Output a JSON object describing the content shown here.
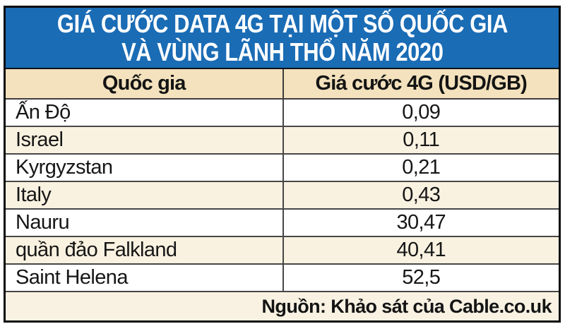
{
  "title": {
    "line1": "GIÁ CƯỚC DATA 4G TẠI MỘT SỐ QUỐC GIA",
    "line2": "VÀ VÙNG LÃNH THỔ NĂM 2020"
  },
  "table": {
    "headers": [
      "Quốc gia",
      "Giá cước 4G (USD/GB)"
    ],
    "rows": [
      {
        "country": "Ấn Độ",
        "price": "0,09"
      },
      {
        "country": "Israel",
        "price": "0,11"
      },
      {
        "country": "Kyrgyzstan",
        "price": "0,21"
      },
      {
        "country": "Italy",
        "price": "0,43"
      },
      {
        "country": "Nauru",
        "price": "30,47"
      },
      {
        "country": "quần đảo Falkland",
        "price": "40,41"
      },
      {
        "country": "Saint Helena",
        "price": "52,5"
      }
    ]
  },
  "footer": {
    "source": "Nguồn: Khảo sát của Cable.co.uk"
  },
  "colors": {
    "title_bg": "#1a6cb5",
    "header_bg": "#f3e2bd",
    "alt_row_bg": "#faf2e1",
    "footer_bg": "#f9f2e3",
    "row_border": "#474747",
    "outer_border": "#0a0a0a",
    "title_text": "#ffffff",
    "body_text": "#161616"
  },
  "chart_data": {
    "type": "table",
    "title": "GIÁ CƯỚC DATA 4G TẠI MỘT SỐ QUỐC GIA VÀ VÙNG LÃNH THỔ NĂM 2020",
    "columns": [
      "Quốc gia",
      "Giá cước 4G (USD/GB)"
    ],
    "categories": [
      "Ấn Độ",
      "Israel",
      "Kyrgyzstan",
      "Italy",
      "Nauru",
      "quần đảo Falkland",
      "Saint Helena"
    ],
    "values": [
      0.09,
      0.11,
      0.21,
      0.43,
      30.47,
      40.41,
      52.5
    ],
    "value_format": "comma-decimal",
    "unit": "USD/GB",
    "source": "Nguồn: Khảo sát của Cable.co.uk"
  }
}
